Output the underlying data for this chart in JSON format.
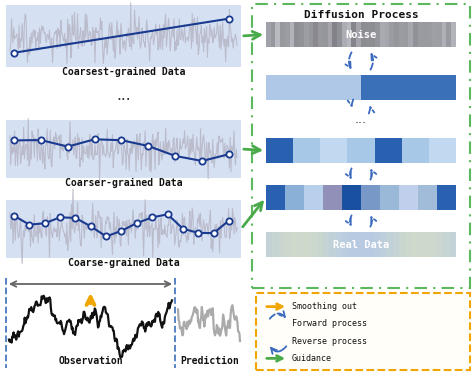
{
  "bg_color": "#ffffff",
  "panel_bg": "#c8d8f0",
  "noise_color_top": "#a8b4c8",
  "noise_color_bot": "#8090a8",
  "diffusion_border": "#5cb85c",
  "legend_border": "#f0a500",
  "arrow_green": "#4aaa4a",
  "arrow_orange": "#f0a500",
  "arrow_blue": "#3a6abf",
  "label_font": 7.0,
  "labels": {
    "coarsest": "Coarsest-grained Data",
    "coarser": "Coarser-grained Data",
    "coarse": "Coarse-grained Data",
    "observation": "Observation",
    "prediction": "Prediction",
    "diffusion": "Diffusion Process",
    "noise": "Noise",
    "real_data": "Real Data",
    "smoothing": "Smoothing out",
    "forward": "Forward process",
    "reverse": "Reverse process",
    "guidance": "Guidance"
  },
  "bar2_colors": [
    "#c0d8f0",
    "#c0d8f0",
    "#c0d8f0",
    "#5080c0",
    "#5080c0",
    "#5080c0"
  ],
  "bar3_colors": [
    "#2a60b0",
    "#a0c4e8",
    "#c0d8f0",
    "#a0c4e8",
    "#2a60b0",
    "#a0c4e8",
    "#c0d8f0"
  ],
  "bar4_colors": [
    "#2a60b0",
    "#90b8e0",
    "#b8d0ec",
    "#9080a0",
    "#2060a8",
    "#8090c0",
    "#90b8e0",
    "#c0d8f0",
    "#a0c4e8",
    "#2a60b0"
  ]
}
